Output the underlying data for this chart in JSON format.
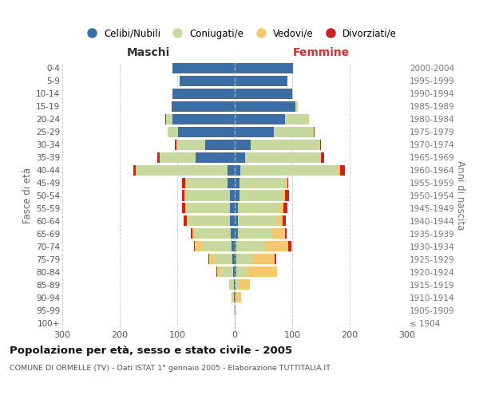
{
  "age_groups": [
    "100+",
    "95-99",
    "90-94",
    "85-89",
    "80-84",
    "75-79",
    "70-74",
    "65-69",
    "60-64",
    "55-59",
    "50-54",
    "45-49",
    "40-44",
    "35-39",
    "30-34",
    "25-29",
    "20-24",
    "15-19",
    "10-14",
    "5-9",
    "0-4"
  ],
  "birth_years": [
    "≤ 1904",
    "1905-1909",
    "1910-1914",
    "1915-1919",
    "1920-1924",
    "1925-1929",
    "1930-1934",
    "1935-1939",
    "1940-1944",
    "1945-1949",
    "1950-1954",
    "1955-1959",
    "1960-1964",
    "1965-1969",
    "1970-1974",
    "1975-1979",
    "1980-1984",
    "1985-1989",
    "1990-1994",
    "1995-1999",
    "2000-2004"
  ],
  "maschi": {
    "celibi": [
      0,
      0,
      1,
      2,
      3,
      4,
      5,
      7,
      8,
      8,
      9,
      12,
      12,
      68,
      52,
      98,
      108,
      110,
      108,
      96,
      108
    ],
    "coniugati": [
      0,
      1,
      3,
      6,
      22,
      32,
      52,
      62,
      72,
      76,
      76,
      72,
      158,
      62,
      50,
      18,
      12,
      0,
      0,
      0,
      0
    ],
    "vedovi": [
      0,
      0,
      1,
      2,
      6,
      8,
      12,
      5,
      4,
      2,
      2,
      2,
      2,
      0,
      0,
      0,
      0,
      0,
      0,
      0,
      0
    ],
    "divorziati": [
      0,
      0,
      0,
      0,
      1,
      2,
      2,
      2,
      5,
      5,
      5,
      5,
      5,
      5,
      2,
      1,
      1,
      0,
      0,
      0,
      0
    ]
  },
  "femmine": {
    "nubili": [
      0,
      0,
      1,
      2,
      3,
      3,
      3,
      5,
      5,
      5,
      8,
      8,
      10,
      18,
      28,
      68,
      88,
      105,
      100,
      92,
      102
    ],
    "coniugate": [
      0,
      1,
      2,
      5,
      18,
      28,
      50,
      60,
      68,
      72,
      75,
      80,
      168,
      130,
      118,
      68,
      38,
      5,
      2,
      0,
      0
    ],
    "vedove": [
      0,
      2,
      8,
      20,
      52,
      38,
      40,
      22,
      10,
      8,
      5,
      3,
      5,
      2,
      2,
      2,
      3,
      0,
      0,
      0,
      0
    ],
    "divorziate": [
      0,
      0,
      0,
      0,
      1,
      3,
      5,
      3,
      6,
      7,
      7,
      2,
      8,
      5,
      2,
      1,
      0,
      0,
      0,
      0,
      0
    ]
  },
  "colors": {
    "celibi_nubili": "#3A6EA5",
    "coniugati_e": "#C8D9A0",
    "vedovi_e": "#F5C870",
    "divorziati_e": "#CC2222"
  },
  "title": "Popolazione per età, sesso e stato civile - 2005",
  "subtitle": "COMUNE DI ORMELLE (TV) - Dati ISTAT 1° gennaio 2005 - Elaborazione TUTTITALIA.IT",
  "xlabel_left": "Maschi",
  "xlabel_right": "Femmine",
  "ylabel_left": "Fasce di età",
  "ylabel_right": "Anni di nascita",
  "xlim": 300,
  "background_color": "#ffffff",
  "grid_color": "#cccccc",
  "legend_labels": [
    "Celibi/Nubili",
    "Coniugati/e",
    "Vedovi/e",
    "Divorziati/e"
  ]
}
